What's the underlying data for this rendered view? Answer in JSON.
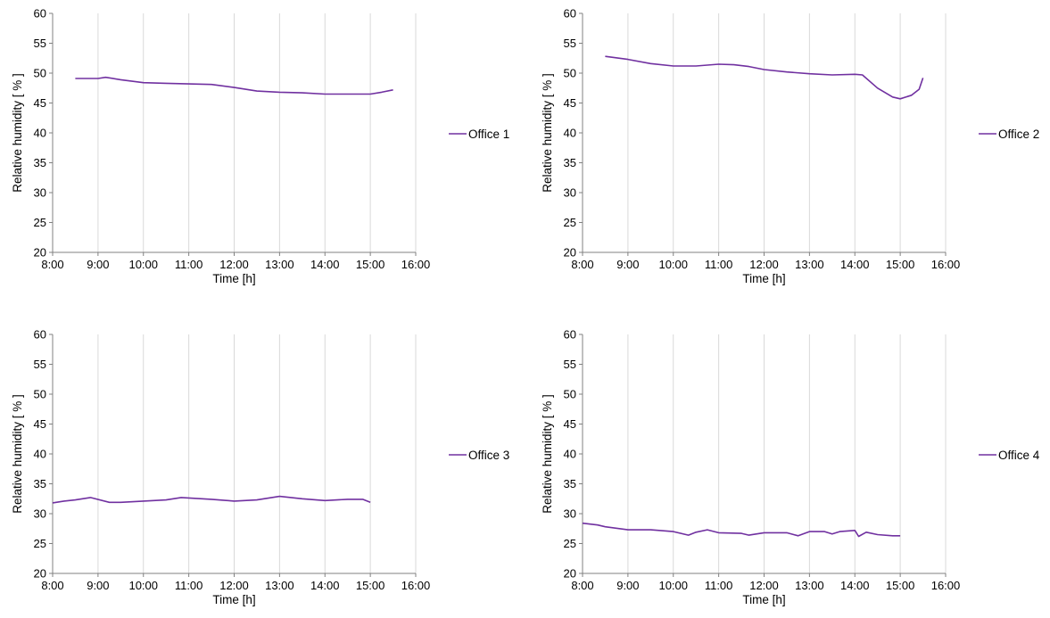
{
  "chart_data": [
    {
      "type": "line",
      "xlabel": "Time [h]",
      "ylabel": "Relative humidity  [ % ]",
      "xlim": [
        "8:00",
        "16:00"
      ],
      "ylim": [
        20,
        60
      ],
      "x_ticks": [
        "8:00",
        "9:00",
        "10:00",
        "11:00",
        "12:00",
        "13:00",
        "14:00",
        "15:00",
        "16:00"
      ],
      "y_ticks": [
        20,
        25,
        30,
        35,
        40,
        45,
        50,
        55,
        60
      ],
      "grid": "vertical",
      "legend_position": "right",
      "color": "#7030a0",
      "series": [
        {
          "name": "Office 1",
          "x": [
            "8:30",
            "9:00",
            "9:10",
            "9:30",
            "10:00",
            "10:30",
            "11:00",
            "11:30",
            "12:00",
            "12:30",
            "13:00",
            "13:30",
            "14:00",
            "14:30",
            "15:00",
            "15:15",
            "15:30"
          ],
          "y": [
            49.1,
            49.1,
            49.3,
            48.9,
            48.4,
            48.3,
            48.2,
            48.1,
            47.6,
            47.0,
            46.8,
            46.7,
            46.5,
            46.5,
            46.5,
            46.8,
            47.2
          ]
        }
      ]
    },
    {
      "type": "line",
      "xlabel": "Time [h]",
      "ylabel": "Relative humidity  [ % ]",
      "xlim": [
        "8:00",
        "16:00"
      ],
      "ylim": [
        20,
        60
      ],
      "x_ticks": [
        "8:00",
        "9:00",
        "10:00",
        "11:00",
        "12:00",
        "13:00",
        "14:00",
        "15:00",
        "16:00"
      ],
      "y_ticks": [
        20,
        25,
        30,
        35,
        40,
        45,
        50,
        55,
        60
      ],
      "grid": "vertical",
      "legend_position": "right",
      "color": "#7030a0",
      "series": [
        {
          "name": "Office 2",
          "x": [
            "8:30",
            "9:00",
            "9:30",
            "10:00",
            "10:30",
            "11:00",
            "11:20",
            "11:40",
            "12:00",
            "12:30",
            "13:00",
            "13:30",
            "14:00",
            "14:10",
            "14:30",
            "14:50",
            "15:00",
            "15:15",
            "15:25",
            "15:30"
          ],
          "y": [
            52.8,
            52.3,
            51.6,
            51.2,
            51.2,
            51.5,
            51.4,
            51.1,
            50.6,
            50.2,
            49.9,
            49.7,
            49.8,
            49.7,
            47.5,
            46.0,
            45.7,
            46.3,
            47.3,
            49.2
          ]
        }
      ]
    },
    {
      "type": "line",
      "xlabel": "Time [h]",
      "ylabel": "Relative humidity  [ % ]",
      "xlim": [
        "8:00",
        "16:00"
      ],
      "ylim": [
        20,
        60
      ],
      "x_ticks": [
        "8:00",
        "9:00",
        "10:00",
        "11:00",
        "12:00",
        "13:00",
        "14:00",
        "15:00",
        "16:00"
      ],
      "y_ticks": [
        20,
        25,
        30,
        35,
        40,
        45,
        50,
        55,
        60
      ],
      "grid": "vertical",
      "legend_position": "right",
      "color": "#7030a0",
      "series": [
        {
          "name": "Office 3",
          "x": [
            "8:00",
            "8:15",
            "8:30",
            "8:50",
            "9:15",
            "9:30",
            "10:00",
            "10:30",
            "10:50",
            "11:30",
            "12:00",
            "12:30",
            "13:00",
            "13:15",
            "13:30",
            "14:00",
            "14:30",
            "14:50",
            "15:00"
          ],
          "y": [
            31.8,
            32.1,
            32.3,
            32.7,
            31.9,
            31.9,
            32.1,
            32.3,
            32.7,
            32.4,
            32.1,
            32.3,
            32.9,
            32.7,
            32.5,
            32.2,
            32.4,
            32.4,
            31.9
          ]
        }
      ]
    },
    {
      "type": "line",
      "xlabel": "Time [h]",
      "ylabel": "Relative humidity  [ % ]",
      "xlim": [
        "8:00",
        "16:00"
      ],
      "ylim": [
        20,
        60
      ],
      "x_ticks": [
        "8:00",
        "9:00",
        "10:00",
        "11:00",
        "12:00",
        "13:00",
        "14:00",
        "15:00",
        "16:00"
      ],
      "y_ticks": [
        20,
        25,
        30,
        35,
        40,
        45,
        50,
        55,
        60
      ],
      "grid": "vertical",
      "legend_position": "right",
      "color": "#7030a0",
      "series": [
        {
          "name": "Office 4",
          "x": [
            "8:00",
            "8:20",
            "8:30",
            "9:00",
            "9:30",
            "10:00",
            "10:20",
            "10:30",
            "10:45",
            "11:00",
            "11:30",
            "11:40",
            "12:00",
            "12:30",
            "12:45",
            "13:00",
            "13:20",
            "13:30",
            "13:40",
            "14:00",
            "14:05",
            "14:15",
            "14:30",
            "14:50",
            "15:00"
          ],
          "y": [
            28.4,
            28.1,
            27.8,
            27.3,
            27.3,
            27.0,
            26.4,
            26.9,
            27.3,
            26.8,
            26.7,
            26.4,
            26.8,
            26.8,
            26.3,
            27.0,
            27.0,
            26.6,
            27.0,
            27.2,
            26.2,
            26.9,
            26.5,
            26.3,
            26.3
          ]
        }
      ]
    }
  ]
}
